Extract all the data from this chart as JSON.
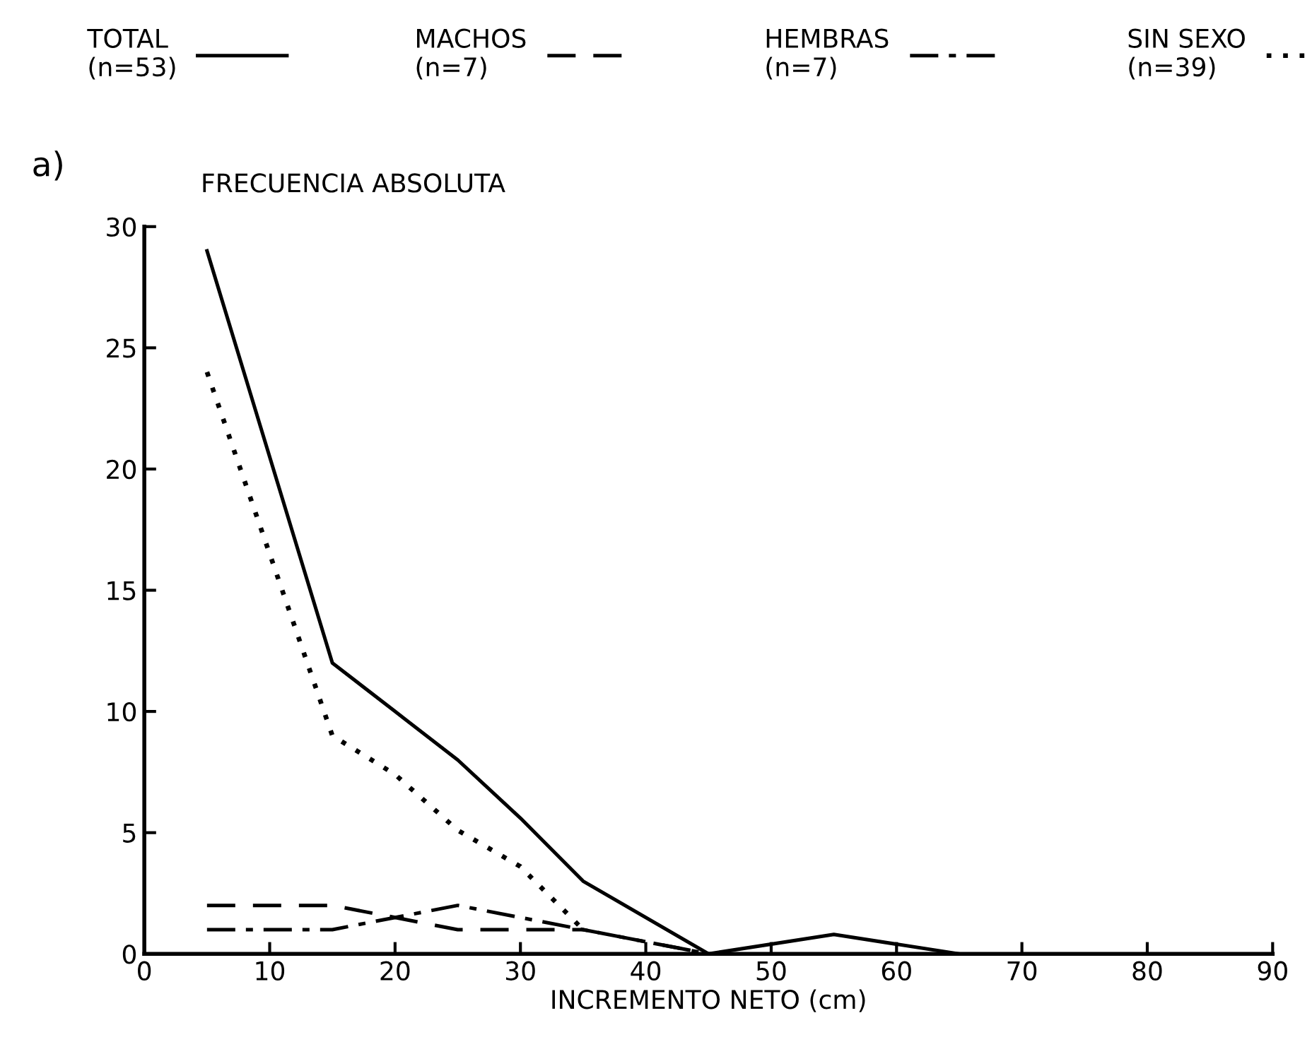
{
  "chart_data": {
    "type": "line",
    "annotations": [
      "a)"
    ],
    "ylabel": "FRECUENCIA ABSOLUTA",
    "xlabel": "INCREMENTO NETO (cm)",
    "xlim": [
      0,
      90
    ],
    "xticks": [
      0,
      10,
      20,
      30,
      40,
      50,
      60,
      70,
      80,
      90
    ],
    "ylim": [
      0,
      30
    ],
    "yticks": [
      0,
      5,
      10,
      15,
      20,
      25,
      30
    ],
    "grid": false,
    "legend": "top",
    "marker": "none",
    "series": [
      {
        "name": "TOTAL\n(n=53)",
        "color": "#000000",
        "line_style": "solid",
        "x": [
          5,
          15,
          20,
          25,
          30,
          35,
          45,
          55,
          65
        ],
        "values": [
          29,
          12,
          10,
          8,
          5.6,
          3,
          0,
          0.8,
          0
        ]
      },
      {
        "name": "MACHOS\n(n=7)",
        "color": "#000000",
        "line_style": "dashed",
        "x": [
          5,
          15,
          25,
          35,
          45
        ],
        "values": [
          2,
          2,
          1,
          1,
          0
        ]
      },
      {
        "name": "HEMBRAS\n(n=7)",
        "color": "#000000",
        "line_style": "dashdot",
        "x": [
          5,
          15,
          25,
          35,
          45
        ],
        "values": [
          1,
          1,
          2,
          1,
          0
        ]
      },
      {
        "name": "SIN SEXO\n(n=39)",
        "color": "#000000",
        "line_style": "dotted",
        "x": [
          5,
          15,
          20,
          25,
          30,
          35
        ],
        "values": [
          24,
          9,
          7.4,
          5.1,
          3.6,
          1
        ]
      }
    ]
  }
}
